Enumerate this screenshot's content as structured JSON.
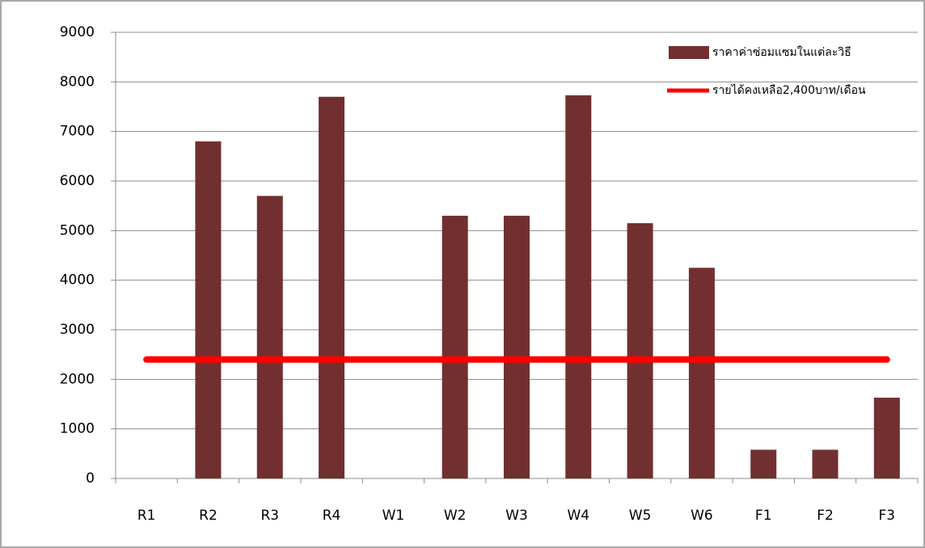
{
  "chart_data": {
    "type": "bar",
    "categories": [
      "R1",
      "R2",
      "R3",
      "R4",
      "W1",
      "W2",
      "W3",
      "W4",
      "W5",
      "W6",
      "F1",
      "F2",
      "F3"
    ],
    "series": [
      {
        "name": "ราคาค่าซ่อมแซมในแต่ละวิธี",
        "type": "bar",
        "color": "#722f2f",
        "values": [
          0,
          6800,
          5700,
          7700,
          0,
          5300,
          5300,
          7730,
          5150,
          4250,
          580,
          580,
          1630
        ]
      },
      {
        "name": "รายได้คงเหลือ2,400บาท/เดือน",
        "type": "line",
        "color": "#ff0000",
        "values": [
          2400,
          2400,
          2400,
          2400,
          2400,
          2400,
          2400,
          2400,
          2400,
          2400,
          2400,
          2400,
          2400
        ]
      }
    ],
    "ylim": [
      0,
      9000
    ],
    "yticks": [
      0,
      1000,
      2000,
      3000,
      4000,
      5000,
      6000,
      7000,
      8000,
      9000
    ],
    "grid": true,
    "legend": "top-right"
  }
}
